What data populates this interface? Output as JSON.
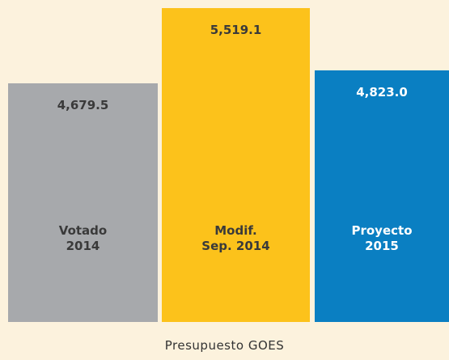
{
  "chart_data": {
    "type": "bar",
    "title": "Presupuesto GOES",
    "categories": [
      "Votado\n2014",
      "Modif.\nSep. 2014",
      "Proyecto\n2015"
    ],
    "values": [
      4679.5,
      5519.1,
      4823.0
    ],
    "value_labels": [
      "4,679.5",
      "5,519.1",
      "4,823.0"
    ],
    "colors": [
      "#a7a9ac",
      "#fcc21b",
      "#0a7fc2"
    ],
    "ylim": [
      2000,
      5600
    ]
  }
}
